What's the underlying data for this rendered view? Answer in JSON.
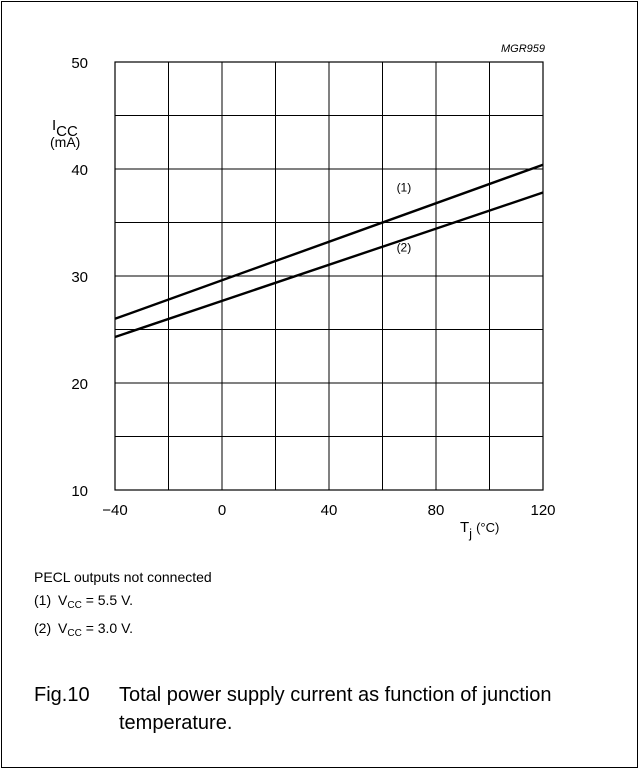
{
  "chart_data": {
    "type": "line",
    "code": "MGR959",
    "ylabel_main": "I",
    "ylabel_sub": "CC",
    "ylabel_unit": "(mA)",
    "xlabel_main": "T",
    "xlabel_sub": "j",
    "xlabel_unit": "(°C)",
    "xlim": [
      -40,
      120
    ],
    "ylim": [
      10,
      50
    ],
    "xticks": [
      -40,
      0,
      40,
      80,
      120
    ],
    "xtick_labels": [
      "−40",
      "0",
      "40",
      "80",
      "120"
    ],
    "yticks": [
      10,
      20,
      30,
      40,
      50
    ],
    "ytick_labels": [
      "10",
      "20",
      "30",
      "40",
      "50"
    ],
    "x_grid": [
      -40,
      -20,
      0,
      20,
      40,
      60,
      80,
      100,
      120
    ],
    "y_grid": [
      10,
      15,
      20,
      25,
      30,
      35,
      40,
      45,
      50
    ],
    "grid": true,
    "series": [
      {
        "name": "(1)",
        "x": [
          -40,
          120
        ],
        "y": [
          26.0,
          40.4
        ],
        "label_at": [
          68,
          37.9
        ]
      },
      {
        "name": "(2)",
        "x": [
          -40,
          120
        ],
        "y": [
          24.3,
          37.8
        ],
        "label_at": [
          68,
          32.3
        ]
      }
    ]
  },
  "notes": {
    "title": "PECL outputs not connected",
    "items": [
      {
        "num": "(1)",
        "var": "V",
        "sub": "CC",
        "rest": "= 5.5 V."
      },
      {
        "num": "(2)",
        "var": "V",
        "sub": "CC",
        "rest": "= 3.0 V."
      }
    ]
  },
  "caption": {
    "number": "Fig.10",
    "text": "Total power supply current as function of junction temperature."
  }
}
